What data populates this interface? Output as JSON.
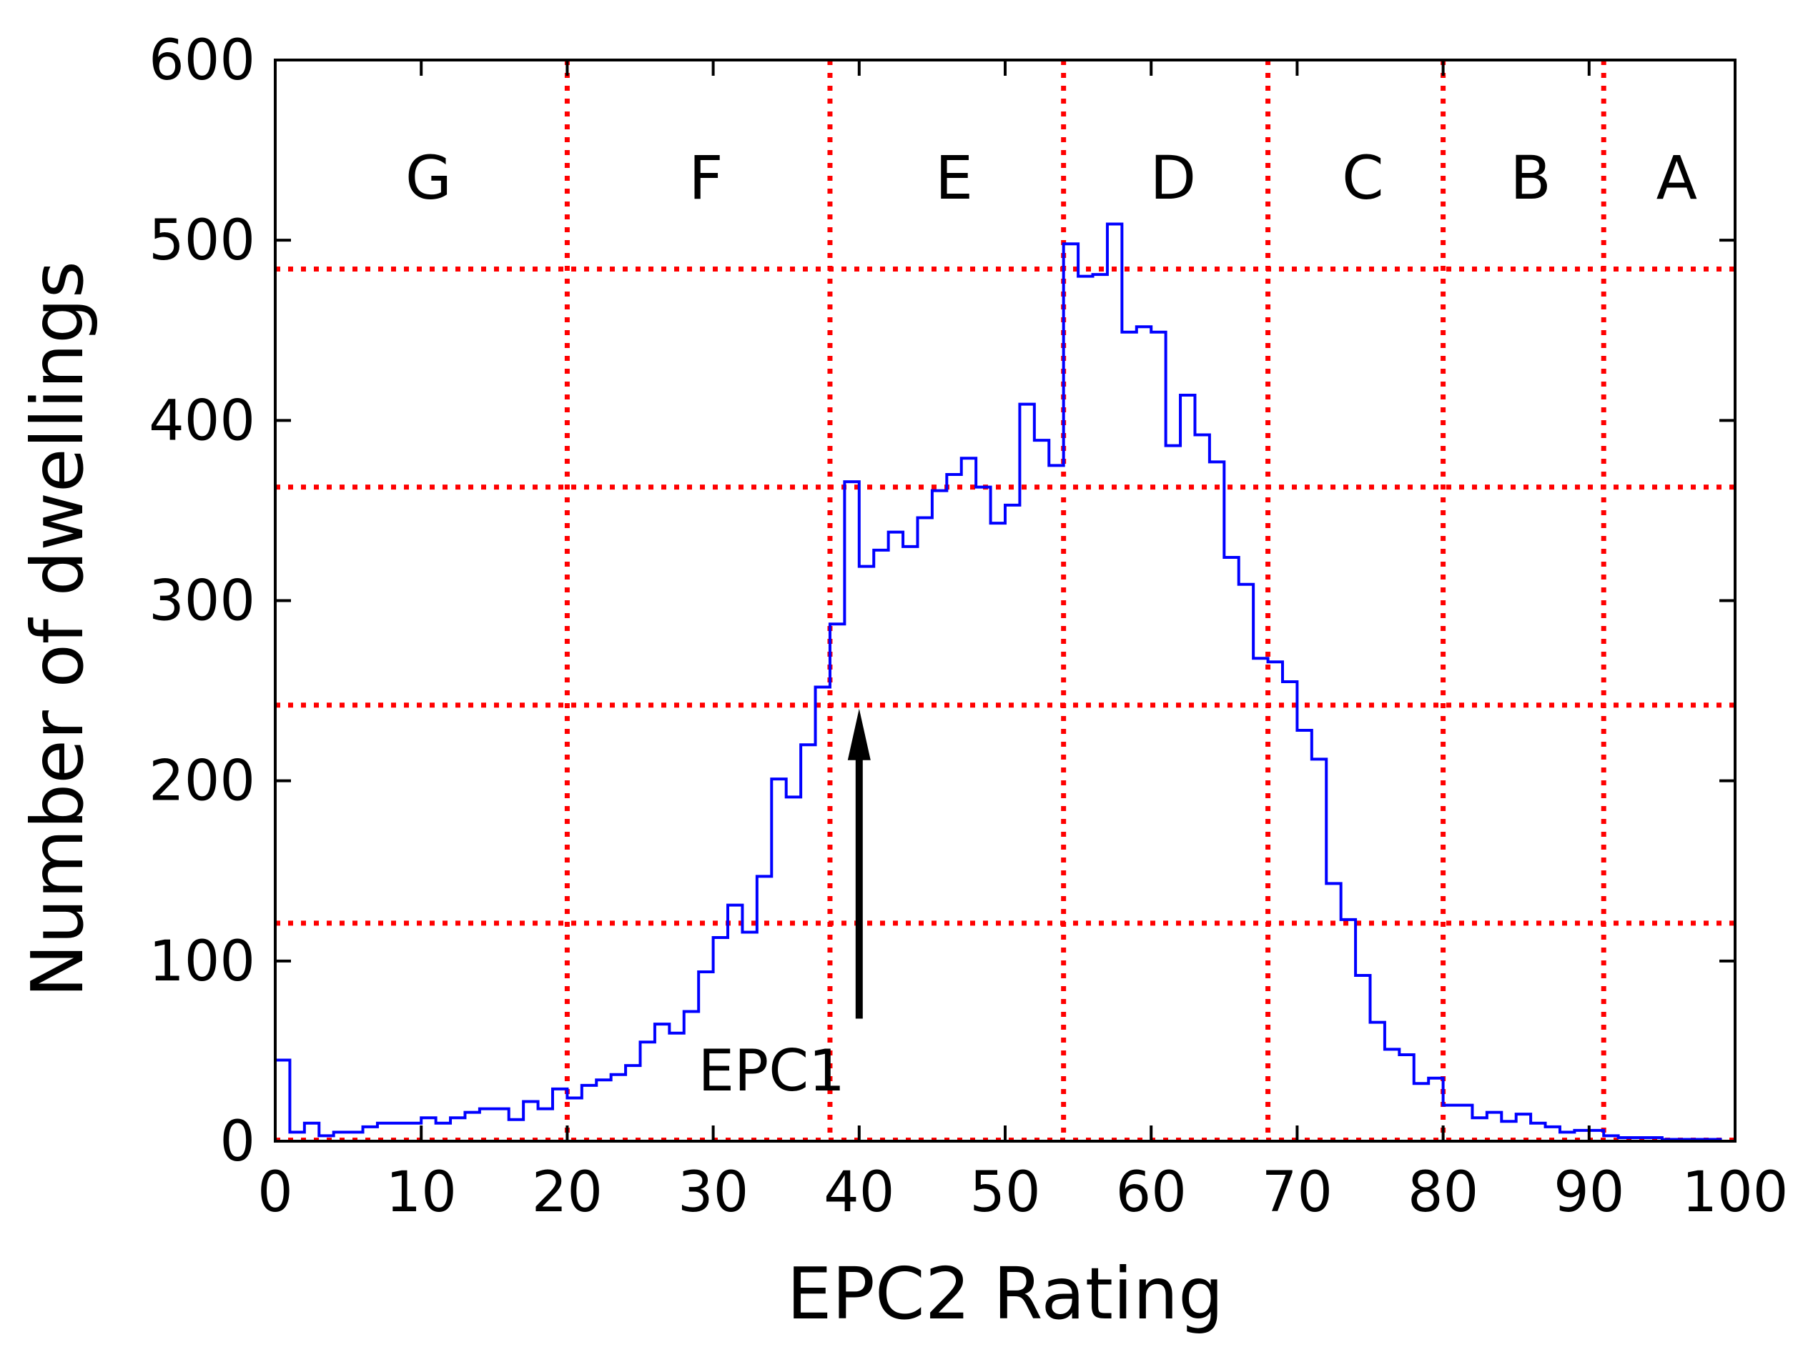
{
  "chart_data": {
    "type": "histogram",
    "xlabel": "EPC2 Rating",
    "ylabel": "Number of dwellings",
    "xlim": [
      0,
      100
    ],
    "ylim": [
      0,
      600
    ],
    "xticks": [
      0,
      10,
      20,
      30,
      40,
      50,
      60,
      70,
      80,
      90,
      100
    ],
    "yticks": [
      0,
      100,
      200,
      300,
      400,
      500,
      600
    ],
    "bin_width": 1,
    "values": [
      45,
      5,
      10,
      3,
      5,
      5,
      8,
      10,
      10,
      10,
      13,
      10,
      13,
      16,
      18,
      18,
      12,
      22,
      18,
      29,
      24,
      31,
      34,
      37,
      42,
      55,
      65,
      60,
      72,
      94,
      113,
      131,
      116,
      147,
      201,
      191,
      220,
      252,
      287,
      366,
      319,
      328,
      338,
      330,
      346,
      361,
      370,
      379,
      363,
      343,
      353,
      409,
      389,
      375,
      498,
      480,
      481,
      509,
      449,
      452,
      449,
      386,
      414,
      392,
      377,
      324,
      309,
      268,
      266,
      255,
      228,
      212,
      143,
      123,
      92,
      66,
      51,
      48,
      32,
      35,
      20,
      20,
      13,
      16,
      11,
      15,
      10,
      8,
      5,
      6,
      6,
      3,
      2,
      2,
      2,
      1,
      1,
      1,
      1,
      0
    ],
    "series_color": "#0000ff",
    "grid_color": "#ff0000",
    "band_boundaries_x": [
      20,
      38,
      54,
      68,
      80,
      91
    ],
    "band_lines_y": [
      121,
      242,
      363,
      484
    ],
    "band_labels": [
      {
        "label": "G",
        "x": 10.5
      },
      {
        "label": "F",
        "x": 29.5
      },
      {
        "label": "E",
        "x": 46.5
      },
      {
        "label": "D",
        "x": 61.5
      },
      {
        "label": "C",
        "x": 74.5
      },
      {
        "label": "B",
        "x": 86
      },
      {
        "label": "A",
        "x": 96
      }
    ],
    "band_label_y": 535,
    "annotation": {
      "text": "EPC1",
      "arrow_x": 40,
      "arrow_y_start": 68,
      "arrow_y_end": 240,
      "text_x": 34,
      "text_y": 40
    }
  }
}
